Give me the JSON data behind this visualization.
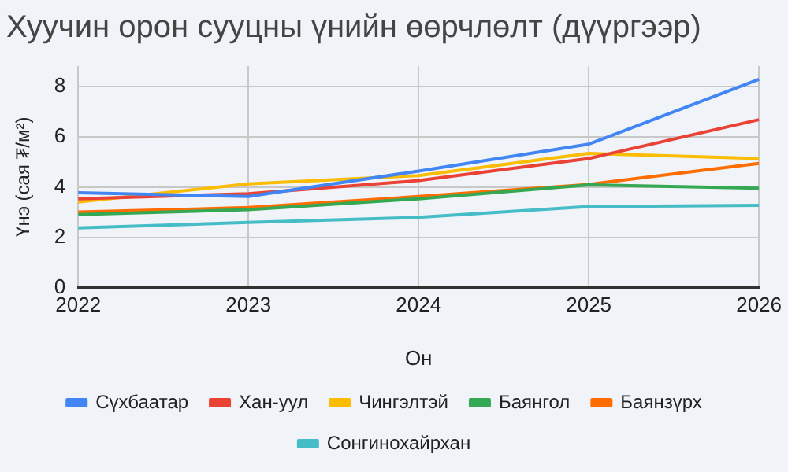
{
  "chart_data": {
    "type": "line",
    "title": "Хуучин орон сууцны үнийн өөрчлөлт (дүүргээр)",
    "xlabel": "Он",
    "ylabel": "Үнэ (сая ₮/м²)",
    "categories": [
      "2022",
      "2023",
      "2024",
      "2025",
      "2026"
    ],
    "series": [
      {
        "name": "Сүхбаатар",
        "color": "#4285f4",
        "values": [
          3.77,
          3.62,
          4.63,
          5.7,
          8.27
        ]
      },
      {
        "name": "Хан-уул",
        "color": "#ea4335",
        "values": [
          3.53,
          3.73,
          4.25,
          5.13,
          6.67
        ]
      },
      {
        "name": "Чингэлтэй",
        "color": "#fbbc04",
        "values": [
          3.4,
          4.12,
          4.45,
          5.33,
          5.13
        ]
      },
      {
        "name": "Баянгол",
        "color": "#34a853",
        "values": [
          2.9,
          3.1,
          3.53,
          4.08,
          3.95
        ]
      },
      {
        "name": "Баянзүрх",
        "color": "#ff6d01",
        "values": [
          3.0,
          3.18,
          3.62,
          4.1,
          4.93
        ]
      },
      {
        "name": "Сонгинохайрхан",
        "color": "#46bdc6",
        "values": [
          2.37,
          2.59,
          2.79,
          3.22,
          3.27
        ]
      }
    ],
    "ylim": [
      0,
      8.8
    ],
    "yticks": [
      0,
      2,
      4,
      6,
      8
    ],
    "grid": true,
    "legend": "bottom",
    "marker": "none",
    "line_style": "solid"
  }
}
